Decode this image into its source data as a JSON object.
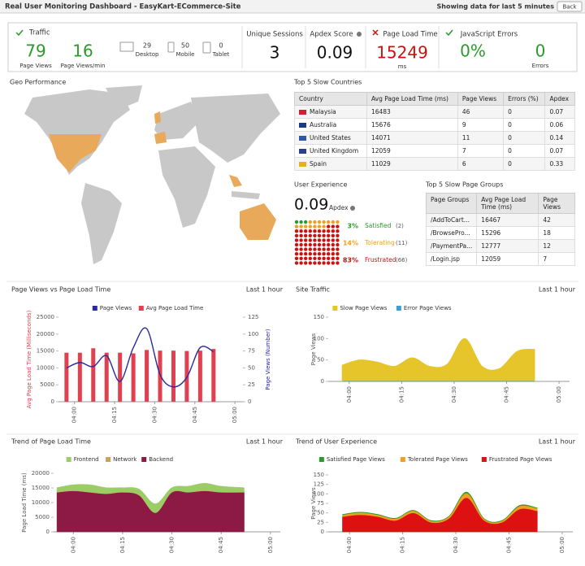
{
  "header": {
    "title": "Real User Monitoring Dashboard - EasyKart-ECommerce-Site",
    "period": "Showing data for last 5 minutes",
    "back": "Back"
  },
  "kpis": {
    "traffic": {
      "label": "Traffic",
      "page_views": 79,
      "page_views_label": "Page Views",
      "per_min": 16,
      "per_min_label": "Page Views/min",
      "desktop": 29,
      "desktop_label": "Desktop",
      "mobile": 50,
      "mobile_label": "Mobile",
      "tablet": 0,
      "tablet_label": "Tablet"
    },
    "unique_sessions": {
      "label": "Unique Sessions",
      "value": 3
    },
    "apdex": {
      "label": "Apdex Score",
      "value": 0.09
    },
    "page_load_time": {
      "label": "Page Load Time",
      "value": 15249,
      "unit": "ms"
    },
    "js_errors": {
      "label": "JavaScript Errors",
      "rate": "0%",
      "errors": 0,
      "errors_label": "Errors"
    }
  },
  "geo": {
    "title": "Geo Performance"
  },
  "countries": {
    "title": "Top 5 Slow Countries",
    "columns": [
      "Country",
      "Avg Page Load Time (ms)",
      "Page Views",
      "Errors (%)",
      "Apdex"
    ],
    "rows": [
      [
        "Malaysia",
        16483,
        46,
        0,
        0.07
      ],
      [
        "Australia",
        15676,
        9,
        0,
        0.06
      ],
      [
        "United States",
        14071,
        11,
        0,
        0.14
      ],
      [
        "United Kingdom",
        12059,
        7,
        0,
        0.07
      ],
      [
        "Spain",
        11029,
        6,
        0,
        0.33
      ]
    ]
  },
  "user_experience": {
    "title": "User Experience",
    "apdex": 0.09,
    "apdex_label": "Apdex",
    "items": [
      {
        "value": 3,
        "label": "3%",
        "name": "Satisfied",
        "count": "(2)",
        "color": "#2a9a2a"
      },
      {
        "value": 14,
        "label": "14%",
        "name": "Tolerating",
        "count": "(11)",
        "color": "#f0a020"
      },
      {
        "value": 83,
        "label": "83%",
        "name": "Frustrated",
        "count": "(66)",
        "color": "#cc1111"
      }
    ]
  },
  "page_groups": {
    "title": "Top 5 Slow Page Groups",
    "columns": [
      "Page Groups",
      "Avg Page Load Time (ms)",
      "Page Views"
    ],
    "rows": [
      [
        "/AddToCart...",
        16467,
        42
      ],
      [
        "/BrowsePro...",
        15296,
        18
      ],
      [
        "/PaymentPa...",
        12777,
        12
      ],
      [
        "/Login.jsp",
        12059,
        7
      ]
    ]
  },
  "chart_data": [
    {
      "type": "combo",
      "title": "Page Views vs Page Load Time",
      "period": "Last 1 hour",
      "x": [
        237,
        242,
        247,
        252,
        257,
        262,
        267,
        272,
        277,
        282,
        287,
        292
      ],
      "xlim": [
        234,
        303
      ],
      "xticks": [
        {
          "value": 240,
          "label": "04:00"
        },
        {
          "value": 255,
          "label": "04:15"
        },
        {
          "value": 270,
          "label": "04:30"
        },
        {
          "value": 285,
          "label": "04:45"
        },
        {
          "value": 300,
          "label": "05:00"
        }
      ],
      "ylim": [
        0,
        25000
      ],
      "yticks": [
        0,
        5000,
        10000,
        15000,
        20000,
        25000
      ],
      "ylabel": "Avg Page Load Time (Milliseconds)",
      "y2lim": [
        0,
        125
      ],
      "y2ticks": [
        0,
        25,
        50,
        75,
        100,
        125
      ],
      "y2label": "Page Views (Number)",
      "series": [
        {
          "name": "Page Views",
          "type": "line",
          "axis": "y2",
          "color": "#2b2b9c",
          "values": [
            50,
            58,
            52,
            68,
            30,
            80,
            108,
            40,
            22,
            36,
            80,
            74
          ]
        },
        {
          "name": "Avg Page Load Time",
          "type": "bar",
          "color": "#e0404f",
          "values": [
            14500,
            14500,
            15800,
            14500,
            14500,
            14300,
            15300,
            15100,
            15100,
            15000,
            15100,
            15600
          ]
        }
      ]
    },
    {
      "type": "area",
      "title": "Site Traffic",
      "period": "Last 1 hour",
      "x": [
        238,
        243,
        248,
        253,
        258,
        263,
        268,
        273,
        278,
        283,
        288,
        293
      ],
      "xlim": [
        234,
        303
      ],
      "xticks": [
        {
          "value": 240,
          "label": "04:00"
        },
        {
          "value": 255,
          "label": "04:15"
        },
        {
          "value": 270,
          "label": "04:30"
        },
        {
          "value": 285,
          "label": "04:45"
        },
        {
          "value": 300,
          "label": "05:00"
        }
      ],
      "ylim": [
        0,
        150
      ],
      "yticks": [
        0,
        50,
        100,
        150
      ],
      "ylabel": "Page Views",
      "series": [
        {
          "name": "Slow Page Views",
          "color": "#e5c52a",
          "values": [
            38,
            50,
            45,
            35,
            55,
            35,
            40,
            100,
            35,
            30,
            70,
            75
          ]
        },
        {
          "name": "Error Page Views",
          "color": "#3aa0d8",
          "values": [
            0,
            0,
            0,
            0,
            0,
            0,
            0,
            0,
            0,
            0,
            0,
            0
          ]
        }
      ]
    },
    {
      "type": "stacked_area",
      "title": "Trend of Page Load Time",
      "period": "Last 1 hour",
      "x": [
        235,
        240,
        245,
        250,
        255,
        260,
        265,
        270,
        275,
        280,
        285,
        292
      ],
      "xlim": [
        234,
        303
      ],
      "xticks": [
        {
          "value": 240,
          "label": "04:00"
        },
        {
          "value": 255,
          "label": "04:15"
        },
        {
          "value": 270,
          "label": "04:30"
        },
        {
          "value": 285,
          "label": "04:45"
        },
        {
          "value": 300,
          "label": "05:00"
        }
      ],
      "ylim": [
        0,
        20000
      ],
      "yticks": [
        0,
        5000,
        10000,
        15000,
        20000
      ],
      "ylabel": "Page Load Time (ms)",
      "series": [
        {
          "name": "Frontend",
          "color": "#9ccc66",
          "values": [
            1500,
            2000,
            2500,
            2000,
            1500,
            2000,
            3000,
            1500,
            2000,
            2500,
            2000,
            1500
          ]
        },
        {
          "name": "Network",
          "color": "#c8a060",
          "values": [
            100,
            100,
            100,
            100,
            100,
            100,
            100,
            100,
            100,
            100,
            100,
            100
          ]
        },
        {
          "name": "Backend",
          "color": "#8c1a45",
          "values": [
            13500,
            14000,
            13500,
            13000,
            13500,
            12500,
            6500,
            13500,
            13500,
            14000,
            13500,
            13500
          ]
        }
      ]
    },
    {
      "type": "stacked_area",
      "title": "Trend of User Experience",
      "period": "Last 1 hour",
      "x": [
        238,
        243,
        248,
        253,
        258,
        263,
        268,
        273,
        278,
        283,
        288,
        293
      ],
      "xlim": [
        234,
        303
      ],
      "xticks": [
        {
          "value": 240,
          "label": "04:00"
        },
        {
          "value": 255,
          "label": "04:15"
        },
        {
          "value": 270,
          "label": "04:30"
        },
        {
          "value": 285,
          "label": "04:45"
        },
        {
          "value": 300,
          "label": "05:00"
        }
      ],
      "ylim": [
        0,
        150
      ],
      "yticks": [
        0,
        25,
        50,
        75,
        100,
        125,
        150
      ],
      "ylabel": "Page Views",
      "series": [
        {
          "name": "Satisfied Page Views",
          "color": "#2a9a2a",
          "values": [
            1,
            1,
            1,
            1,
            1,
            1,
            1,
            3,
            1,
            1,
            2,
            1
          ]
        },
        {
          "name": "Tolerated Page Views",
          "color": "#f0a020",
          "values": [
            5,
            6,
            5,
            5,
            6,
            4,
            5,
            12,
            4,
            4,
            8,
            7
          ]
        },
        {
          "name": "Frustrated Page Views",
          "color": "#dd1111",
          "values": [
            40,
            45,
            40,
            30,
            50,
            25,
            35,
            90,
            30,
            25,
            60,
            55
          ]
        }
      ]
    }
  ]
}
